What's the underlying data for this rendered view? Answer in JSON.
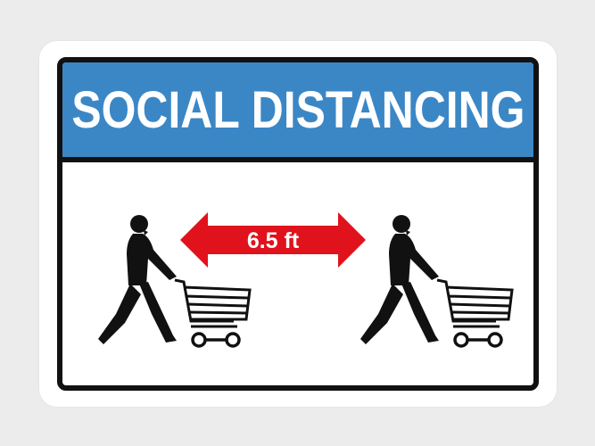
{
  "sign": {
    "title": "SOCIAL DISTANCING",
    "distance_label": "6.5 ft",
    "colors": {
      "banner": "#3b87c6",
      "arrow": "#e0121b",
      "outline": "#111111",
      "background": "#ffffff"
    },
    "icons": [
      "person-pushing-cart-icon",
      "double-headed-arrow-icon",
      "person-pushing-cart-icon"
    ]
  }
}
